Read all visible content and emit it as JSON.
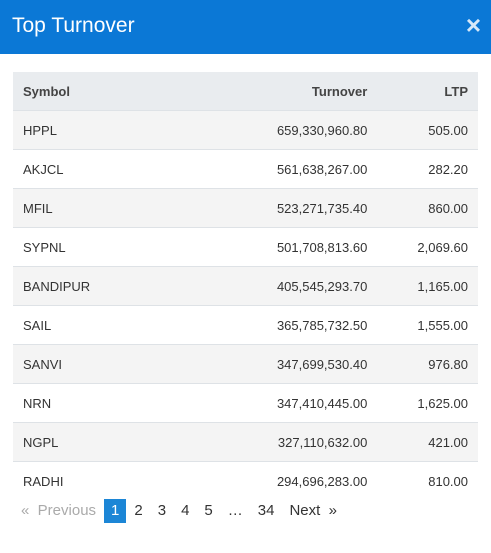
{
  "header": {
    "title": "Top Turnover",
    "close": "×"
  },
  "table": {
    "columns": [
      "Symbol",
      "Turnover",
      "LTP"
    ],
    "rows": [
      [
        "HPPL",
        "659,330,960.80",
        "505.00"
      ],
      [
        "AKJCL",
        "561,638,267.00",
        "282.20"
      ],
      [
        "MFIL",
        "523,271,735.40",
        "860.00"
      ],
      [
        "SYPNL",
        "501,708,813.60",
        "2,069.60"
      ],
      [
        "BANDIPUR",
        "405,545,293.70",
        "1,165.00"
      ],
      [
        "SAIL",
        "365,785,732.50",
        "1,555.00"
      ],
      [
        "SANVI",
        "347,699,530.40",
        "976.80"
      ],
      [
        "NRN",
        "347,410,445.00",
        "1,625.00"
      ],
      [
        "NGPL",
        "327,110,632.00",
        "421.00"
      ],
      [
        "RADHI",
        "294,696,283.00",
        "810.00"
      ]
    ]
  },
  "pagination": {
    "previous": "«  Previous",
    "pages": [
      "1",
      "2",
      "3",
      "4",
      "5",
      "…",
      "34"
    ],
    "active": 0,
    "next": "Next  »"
  }
}
